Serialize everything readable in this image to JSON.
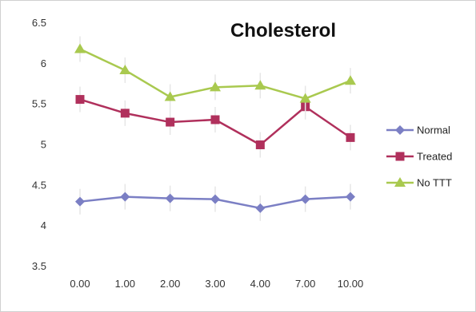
{
  "chart_data": {
    "type": "line",
    "title": "Cholesterol",
    "categories": [
      "0.00",
      "1.00",
      "2.00",
      "3.00",
      "4.00",
      "7.00",
      "10.00"
    ],
    "xlabel": "",
    "ylabel": "",
    "ylim": [
      3.5,
      6.5
    ],
    "yticks": [
      "3.5",
      "4",
      "4.5",
      "5",
      "5.5",
      "6",
      "6.5"
    ],
    "grid": false,
    "legend_position": "right",
    "series": [
      {
        "name": "Normal",
        "color": "#7b7fc4",
        "marker": "diamond",
        "values": [
          4.29,
          4.35,
          4.33,
          4.32,
          4.21,
          4.32,
          4.35
        ]
      },
      {
        "name": "Treated",
        "color": "#b0305c",
        "marker": "square",
        "values": [
          5.55,
          5.38,
          5.27,
          5.3,
          4.99,
          5.46,
          5.08
        ]
      },
      {
        "name": "No TTT",
        "color": "#a9c94f",
        "marker": "triangle",
        "values": [
          6.17,
          5.91,
          5.58,
          5.7,
          5.72,
          5.56,
          5.78
        ]
      }
    ]
  }
}
